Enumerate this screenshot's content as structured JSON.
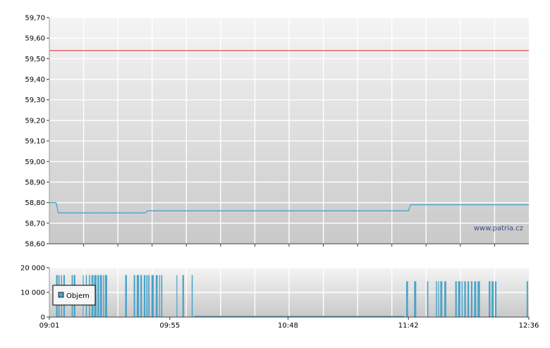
{
  "colors": {
    "price_line": "#4aa3c8",
    "reference_line": "#e06060",
    "volume_bar": "#4aa3c8",
    "grid": "#ffffff",
    "axis": "#333333",
    "plot_bg_top": "#f4f4f4",
    "plot_bg_bottom": "#c9c9c9"
  },
  "watermark": "www.patria.cz",
  "legend_volume": "Objem",
  "chart_data": [
    {
      "type": "line",
      "x_ticks": [
        "09:01",
        "09:55",
        "10:48",
        "11:42",
        "12:36"
      ],
      "x_minutes": [
        541,
        595,
        648,
        702,
        756
      ],
      "ylim": [
        58.6,
        59.7
      ],
      "y_ticks": [
        58.6,
        58.7,
        58.8,
        58.9,
        59.0,
        59.1,
        59.2,
        59.3,
        59.4,
        59.5,
        59.6,
        59.7
      ],
      "y_tick_labels": [
        "58,60",
        "58,70",
        "58,80",
        "58,90",
        "59,00",
        "59,10",
        "59,20",
        "59,30",
        "59,40",
        "59,50",
        "59,60",
        "59,70"
      ],
      "reference_value": 59.54,
      "grid": true,
      "series": [
        {
          "x": [
            541,
            544,
            545,
            584,
            585,
            606,
            702,
            703,
            756
          ],
          "y": [
            58.8,
            58.8,
            58.75,
            58.75,
            58.76,
            58.76,
            58.76,
            58.79,
            58.79
          ]
        }
      ]
    },
    {
      "type": "bar",
      "ylim": [
        0,
        20000
      ],
      "y_ticks": [
        0,
        10000,
        20000
      ],
      "y_tick_labels": [
        "0",
        "10 000",
        "20 000"
      ],
      "legend": [
        "Objem"
      ],
      "legend_position": "left",
      "grid": true,
      "volume_blocks": [
        {
          "from": 544,
          "to": 549,
          "value": 17000
        },
        {
          "from": 551,
          "to": 553,
          "value": 17000
        },
        {
          "from": 556,
          "to": 566,
          "value": 17000
        },
        {
          "from": 575,
          "to": 593,
          "value": 17000
        },
        {
          "from": 598,
          "to": 605,
          "value": 17000
        },
        {
          "from": 701,
          "to": 705,
          "value": 14500
        },
        {
          "from": 708,
          "to": 712,
          "value": 14500
        },
        {
          "from": 713,
          "to": 736,
          "value": 14500
        },
        {
          "from": 738,
          "to": 741,
          "value": 14500
        }
      ]
    }
  ]
}
